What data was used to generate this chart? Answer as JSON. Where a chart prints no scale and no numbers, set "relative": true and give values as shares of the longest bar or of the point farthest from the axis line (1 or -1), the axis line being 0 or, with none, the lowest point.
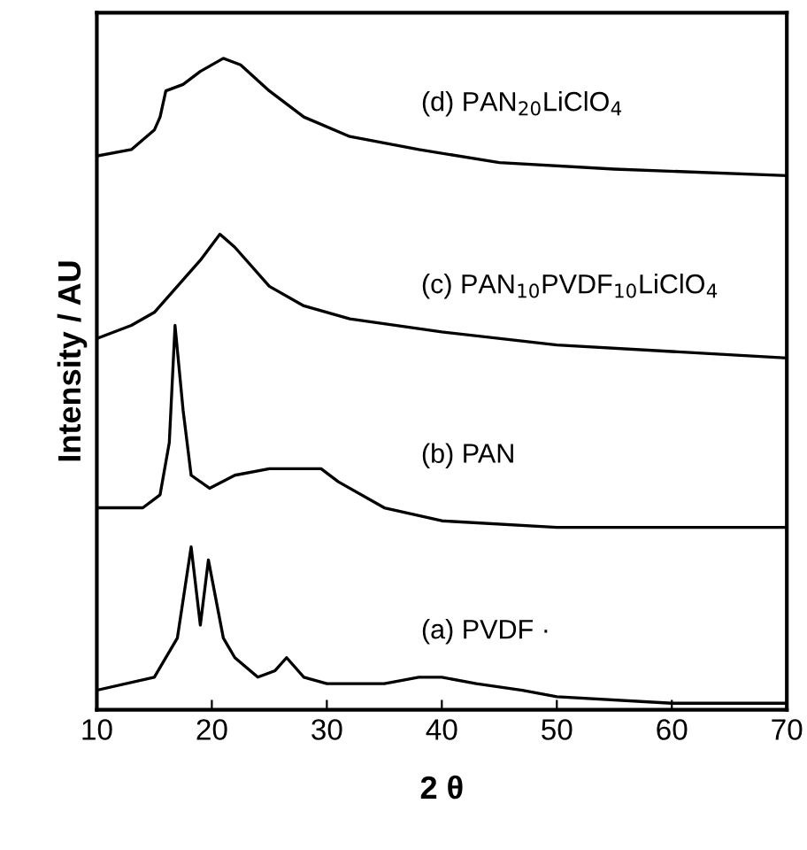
{
  "chart_data": {
    "type": "line",
    "xlabel": "2 θ",
    "ylabel": "Intensity / AU",
    "relative": true,
    "xlim": [
      10,
      70
    ],
    "xticks": [
      10,
      20,
      30,
      40,
      50,
      60,
      70
    ],
    "tick_labels": "x",
    "grid": false,
    "legend": false,
    "marker": "none",
    "line_style": "solid",
    "series": [
      {
        "name": "(a) PVDF ·",
        "color": "#000000",
        "x": [
          10,
          15,
          17,
          18.2,
          19,
          19.7,
          21,
          22,
          24,
          25.5,
          26.5,
          28,
          30,
          35,
          38,
          40,
          43,
          47,
          50,
          60,
          70
        ],
        "values": [
          0.03,
          0.05,
          0.11,
          0.25,
          0.13,
          0.23,
          0.11,
          0.08,
          0.05,
          0.06,
          0.08,
          0.05,
          0.04,
          0.04,
          0.05,
          0.05,
          0.04,
          0.03,
          0.02,
          0.01,
          0.01
        ]
      },
      {
        "name": "(b) PAN",
        "color": "#000000",
        "x": [
          10,
          14,
          15.5,
          16.3,
          16.8,
          17.5,
          18.2,
          19.8,
          22,
          25,
          27,
          29.5,
          31,
          35,
          40,
          50,
          60,
          70
        ],
        "values": [
          0.31,
          0.31,
          0.33,
          0.41,
          0.59,
          0.46,
          0.36,
          0.34,
          0.36,
          0.37,
          0.37,
          0.37,
          0.35,
          0.31,
          0.29,
          0.28,
          0.28,
          0.28
        ]
      },
      {
        "name": "(c) PAN$_{10}$PVDF$_{10}$LiClO$_{4}$",
        "color": "#000000",
        "x": [
          10,
          13,
          15,
          17,
          19,
          20.7,
          22,
          25,
          28,
          32,
          40,
          50,
          60,
          70
        ],
        "values": [
          0.57,
          0.59,
          0.61,
          0.65,
          0.69,
          0.73,
          0.71,
          0.65,
          0.62,
          0.6,
          0.58,
          0.56,
          0.55,
          0.54
        ]
      },
      {
        "name": "(d) PAN$_{20}$LiClO$_{4}$",
        "color": "#000000",
        "x": [
          10,
          13,
          15,
          15.5,
          16,
          17.5,
          19,
          21,
          22.5,
          25,
          28,
          32,
          38,
          45,
          55,
          70
        ],
        "values": [
          0.85,
          0.86,
          0.89,
          0.91,
          0.95,
          0.96,
          0.98,
          1.0,
          0.99,
          0.95,
          0.91,
          0.88,
          0.86,
          0.84,
          0.83,
          0.82
        ]
      }
    ]
  }
}
